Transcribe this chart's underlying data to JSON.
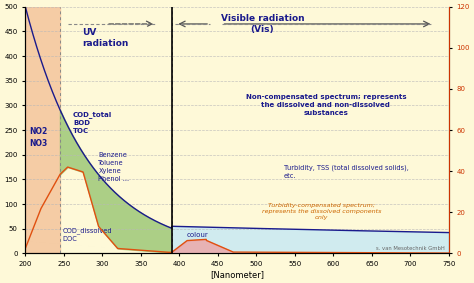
{
  "bg_color": "#fef9d8",
  "xlim": [
    200,
    750
  ],
  "ylim_left": [
    0,
    500
  ],
  "ylim_right": [
    0,
    120
  ],
  "xlabel": "[Nanometer]",
  "uv_boundary": 390,
  "uv_vis_split": 245,
  "uv_region_color": "#f5c8a0",
  "green_fill_color": "#9ec878",
  "light_blue_fill_color": "#c5e8f5",
  "pink_fill_color": "#f0a0a0",
  "blue_curve_color": "#1a1a8c",
  "orange_curve_color": "#e05010",
  "grid_color": "#b8b8b8",
  "title_color": "#1a1a8c",
  "annotation_color_blue": "#1a1a8c",
  "annotation_color_orange": "#cc6600",
  "right_axis_color": "#cc3300",
  "uv_text": "UV\nradiation",
  "vis_text": "Visible radiation\n(Vis)",
  "no2_no3_text": "NO2\nNO3",
  "cod_total_text": "COD_total\nBOD\nTOC",
  "benzene_text": "Benzene\nToluene\nXylene\nPhenol ...",
  "cod_dissolved_text": "COD_dissolved\nDOC",
  "colour_text": "colour",
  "noncomp_text": "Non-compensated spectrum; represents\nthe dissolved and non-dissolved\nsubstances",
  "turbidity_text": "Turbidity, TSS (total dissolved solids),\netc.",
  "turb_comp_text": "Turbidity-compensated spectrum;\nrepresents the dissolved components\nonly",
  "credit_text": "s. van Mesotechnik GmbH",
  "xticks": [
    200,
    250,
    300,
    350,
    400,
    450,
    500,
    550,
    600,
    650,
    700,
    750
  ],
  "yticks_left": [
    0,
    50,
    100,
    150,
    200,
    250,
    300,
    350,
    400,
    450,
    500
  ],
  "yticks_right": [
    0,
    20,
    40,
    60,
    80,
    100,
    120
  ]
}
